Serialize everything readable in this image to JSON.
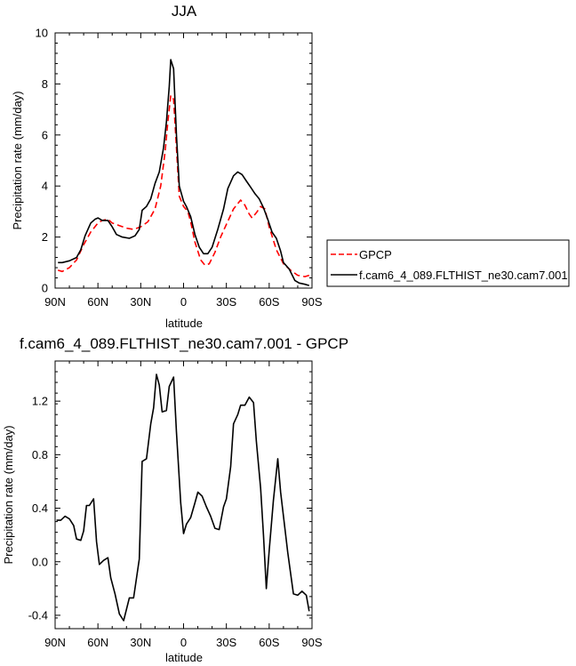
{
  "chart_data": [
    {
      "type": "line",
      "title": "JJA",
      "xlabel": "latitude",
      "ylabel": "Precipitation rate (mm/day)",
      "xlim": [
        90,
        -90
      ],
      "ylim": [
        0,
        10
      ],
      "x_ticks": [
        90,
        60,
        30,
        0,
        -30,
        -60,
        -90
      ],
      "x_tick_labels": [
        "90N",
        "60N",
        "30N",
        "0",
        "30S",
        "60S",
        "90S"
      ],
      "y_ticks": [
        0,
        2,
        4,
        6,
        8,
        10
      ],
      "y_tick_labels": [
        "0",
        "2",
        "4",
        "6",
        "8",
        "10"
      ],
      "grid": false,
      "legend": "right, outside plot",
      "series": [
        {
          "name": "GPCP",
          "color": "#ff0000",
          "dash": "dashed",
          "points": [
            [
              88,
              0.7
            ],
            [
              85,
              0.65
            ],
            [
              80,
              0.8
            ],
            [
              75,
              1.1
            ],
            [
              70,
              1.7
            ],
            [
              65,
              2.2
            ],
            [
              60,
              2.55
            ],
            [
              57,
              2.65
            ],
            [
              53,
              2.7
            ],
            [
              50,
              2.55
            ],
            [
              45,
              2.45
            ],
            [
              40,
              2.35
            ],
            [
              35,
              2.3
            ],
            [
              30,
              2.4
            ],
            [
              25,
              2.6
            ],
            [
              20,
              3.1
            ],
            [
              16,
              4.0
            ],
            [
              13,
              5.3
            ],
            [
              11,
              6.5
            ],
            [
              9,
              7.55
            ],
            [
              7,
              7.4
            ],
            [
              5,
              5.5
            ],
            [
              3,
              3.6
            ],
            [
              0,
              3.2
            ],
            [
              -3,
              3.0
            ],
            [
              -5,
              2.6
            ],
            [
              -8,
              1.8
            ],
            [
              -12,
              1.1
            ],
            [
              -15,
              0.9
            ],
            [
              -18,
              0.95
            ],
            [
              -22,
              1.4
            ],
            [
              -26,
              2.0
            ],
            [
              -30,
              2.5
            ],
            [
              -35,
              3.1
            ],
            [
              -40,
              3.45
            ],
            [
              -43,
              3.25
            ],
            [
              -46,
              2.9
            ],
            [
              -48,
              2.75
            ],
            [
              -51,
              2.95
            ],
            [
              -54,
              3.2
            ],
            [
              -57,
              3.1
            ],
            [
              -60,
              2.4
            ],
            [
              -65,
              1.5
            ],
            [
              -70,
              0.95
            ],
            [
              -75,
              0.7
            ],
            [
              -80,
              0.5
            ],
            [
              -85,
              0.45
            ],
            [
              -88,
              0.5
            ]
          ]
        },
        {
          "name": "f.cam6_4_089.FLTHIST_ne30.cam7.001",
          "color": "#000000",
          "dash": "solid",
          "points": [
            [
              88,
              1.0
            ],
            [
              85,
              1.0
            ],
            [
              80,
              1.07
            ],
            [
              75,
              1.2
            ],
            [
              72,
              1.5
            ],
            [
              69,
              2.05
            ],
            [
              65,
              2.55
            ],
            [
              62,
              2.7
            ],
            [
              60,
              2.75
            ],
            [
              57,
              2.65
            ],
            [
              53,
              2.65
            ],
            [
              50,
              2.4
            ],
            [
              47,
              2.1
            ],
            [
              43,
              2.0
            ],
            [
              38,
              1.95
            ],
            [
              34,
              2.05
            ],
            [
              31,
              2.3
            ],
            [
              29,
              3.05
            ],
            [
              26,
              3.2
            ],
            [
              23,
              3.5
            ],
            [
              20,
              4.1
            ],
            [
              17,
              4.55
            ],
            [
              14,
              5.5
            ],
            [
              12,
              6.5
            ],
            [
              10,
              7.9
            ],
            [
              9,
              8.95
            ],
            [
              7,
              8.6
            ],
            [
              5,
              6.0
            ],
            [
              3,
              4.0
            ],
            [
              0,
              3.4
            ],
            [
              -2,
              3.2
            ],
            [
              -5,
              2.8
            ],
            [
              -8,
              2.1
            ],
            [
              -11,
              1.6
            ],
            [
              -14,
              1.35
            ],
            [
              -17,
              1.35
            ],
            [
              -20,
              1.6
            ],
            [
              -24,
              2.3
            ],
            [
              -28,
              3.1
            ],
            [
              -31,
              3.9
            ],
            [
              -35,
              4.4
            ],
            [
              -38,
              4.55
            ],
            [
              -41,
              4.45
            ],
            [
              -44,
              4.2
            ],
            [
              -47,
              3.95
            ],
            [
              -50,
              3.7
            ],
            [
              -53,
              3.5
            ],
            [
              -56,
              3.15
            ],
            [
              -59,
              2.7
            ],
            [
              -62,
              2.2
            ],
            [
              -65,
              1.95
            ],
            [
              -68,
              1.45
            ],
            [
              -70,
              1.0
            ],
            [
              -74,
              0.75
            ],
            [
              -78,
              0.3
            ],
            [
              -81,
              0.2
            ],
            [
              -85,
              0.15
            ],
            [
              -88,
              0.1
            ]
          ]
        }
      ]
    },
    {
      "type": "line",
      "title": "f.cam6_4_089.FLTHIST_ne30.cam7.001 - GPCP",
      "xlabel": "latitude",
      "ylabel": "Precipitation rate (mm/day)",
      "xlim": [
        90,
        -90
      ],
      "ylim": [
        -0.5,
        1.5
      ],
      "x_ticks": [
        90,
        60,
        30,
        0,
        -30,
        -60,
        -90
      ],
      "x_tick_labels": [
        "90N",
        "60N",
        "30N",
        "0",
        "30S",
        "60S",
        "90S"
      ],
      "y_ticks": [
        -0.4,
        0.0,
        0.4,
        0.8,
        1.2
      ],
      "y_tick_labels": [
        "-0.4",
        "0.0",
        "0.4",
        "0.8",
        "1.2"
      ],
      "grid": false,
      "series": [
        {
          "color": "#000000",
          "dash": "solid",
          "points": [
            [
              89,
              0.31
            ],
            [
              86,
              0.31
            ],
            [
              83,
              0.34
            ],
            [
              80,
              0.32
            ],
            [
              77,
              0.27
            ],
            [
              75,
              0.17
            ],
            [
              72,
              0.16
            ],
            [
              70,
              0.23
            ],
            [
              68,
              0.42
            ],
            [
              66,
              0.42
            ],
            [
              63,
              0.47
            ],
            [
              61,
              0.15
            ],
            [
              59,
              -0.02
            ],
            [
              56,
              0.01
            ],
            [
              53,
              0.03
            ],
            [
              51,
              -0.12
            ],
            [
              48,
              -0.24
            ],
            [
              45,
              -0.39
            ],
            [
              42,
              -0.44
            ],
            [
              38,
              -0.27
            ],
            [
              35,
              -0.27
            ],
            [
              31,
              0.02
            ],
            [
              29,
              0.75
            ],
            [
              26,
              0.77
            ],
            [
              23,
              1.03
            ],
            [
              21,
              1.15
            ],
            [
              19,
              1.4
            ],
            [
              17,
              1.32
            ],
            [
              15,
              1.12
            ],
            [
              12,
              1.13
            ],
            [
              10,
              1.31
            ],
            [
              7,
              1.38
            ],
            [
              5,
              0.97
            ],
            [
              2,
              0.44
            ],
            [
              0,
              0.21
            ],
            [
              -2,
              0.28
            ],
            [
              -5,
              0.33
            ],
            [
              -8,
              0.44
            ],
            [
              -10,
              0.52
            ],
            [
              -13,
              0.49
            ],
            [
              -16,
              0.41
            ],
            [
              -19,
              0.34
            ],
            [
              -22,
              0.25
            ],
            [
              -25,
              0.24
            ],
            [
              -28,
              0.41
            ],
            [
              -30,
              0.47
            ],
            [
              -33,
              0.71
            ],
            [
              -35,
              1.03
            ],
            [
              -38,
              1.1
            ],
            [
              -40,
              1.17
            ],
            [
              -43,
              1.17
            ],
            [
              -46,
              1.23
            ],
            [
              -49,
              1.19
            ],
            [
              -51,
              0.9
            ],
            [
              -54,
              0.55
            ],
            [
              -56,
              0.2
            ],
            [
              -58,
              -0.2
            ],
            [
              -60,
              0.08
            ],
            [
              -63,
              0.46
            ],
            [
              -66,
              0.77
            ],
            [
              -68,
              0.52
            ],
            [
              -71,
              0.25
            ],
            [
              -73,
              0.07
            ],
            [
              -77,
              -0.24
            ],
            [
              -80,
              -0.25
            ],
            [
              -83,
              -0.22
            ],
            [
              -86,
              -0.25
            ],
            [
              -88,
              -0.37
            ]
          ]
        }
      ]
    }
  ]
}
